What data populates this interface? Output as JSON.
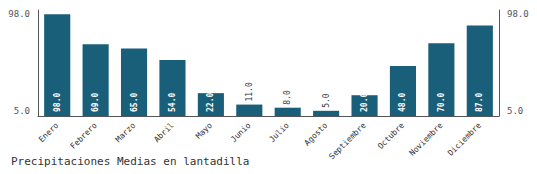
{
  "chart_data": {
    "type": "bar",
    "title": "Precipitaciones Medias en lantadilla",
    "categories": [
      "Enero",
      "Febrero",
      "Marzo",
      "Abril",
      "Mayo",
      "Junio",
      "Julio",
      "Agosto",
      "Septiembre",
      "Octubre",
      "Noviembre",
      "Diciembre"
    ],
    "values": [
      98.0,
      69.0,
      65.0,
      54.0,
      22.0,
      11.0,
      8.0,
      5.0,
      20.0,
      48.0,
      70.0,
      87.0
    ],
    "value_labels": [
      "98.0",
      "69.0",
      "65.0",
      "54.0",
      "22.0",
      "11.0",
      "8.0",
      "5.0",
      "20.0",
      "48.0",
      "70.0",
      "87.0"
    ],
    "data_labels": true,
    "color": "#1a5f7a",
    "ylim": [
      0,
      102
    ],
    "yticks": [
      {
        "value": 5.0,
        "label": "5.0"
      },
      {
        "value": 98.0,
        "label": "98.0"
      }
    ],
    "y2lim": [
      0,
      102
    ],
    "y2ticks": [
      {
        "value": 5.0,
        "label": "5.0"
      },
      {
        "value": 98.0,
        "label": "98.0"
      }
    ],
    "grid": false
  }
}
